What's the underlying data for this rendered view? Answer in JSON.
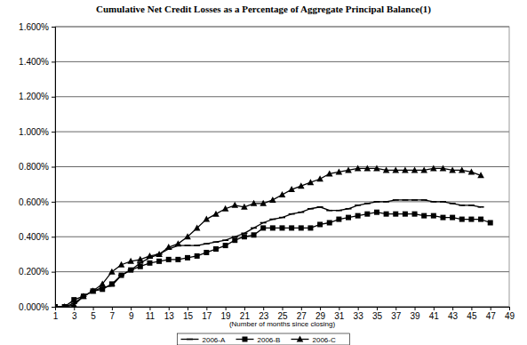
{
  "chart_data": {
    "type": "line",
    "title": "Cumulative Net Credit Losses as a Percentage of Aggregate Principal Balance(1)",
    "x_label": "(Number of months since closing)",
    "x": [
      1,
      2,
      3,
      4,
      5,
      6,
      7,
      8,
      9,
      10,
      11,
      12,
      13,
      14,
      15,
      16,
      17,
      18,
      19,
      20,
      21,
      22,
      23,
      24,
      25,
      26,
      27,
      28,
      29,
      30,
      31,
      32,
      33,
      34,
      35,
      36,
      37,
      38,
      39,
      40,
      41,
      42,
      43,
      44,
      45,
      46,
      47
    ],
    "xlim": [
      1,
      49
    ],
    "xticks": [
      1,
      3,
      5,
      7,
      9,
      11,
      13,
      15,
      17,
      19,
      21,
      23,
      25,
      27,
      29,
      31,
      33,
      35,
      37,
      39,
      41,
      43,
      45,
      47,
      49
    ],
    "ylim": [
      0,
      1.6
    ],
    "yticks": [
      {
        "value": 0,
        "label": "0.000%"
      },
      {
        "value": 0.2,
        "label": "0.200%"
      },
      {
        "value": 0.4,
        "label": "0.400%"
      },
      {
        "value": 0.6,
        "label": "0.600%"
      },
      {
        "value": 0.8,
        "label": "0.800%"
      },
      {
        "value": 1.0,
        "label": "1.000%"
      },
      {
        "value": 1.2,
        "label": "1.200%"
      },
      {
        "value": 1.4,
        "label": "1.400%"
      },
      {
        "value": 1.6,
        "label": "1.600%"
      }
    ],
    "grid": true,
    "legend": "bottom",
    "series": [
      {
        "name": "2006-A",
        "color": "#000000",
        "marker": "dash",
        "line_style": "solid",
        "values": [
          0,
          0,
          0.02,
          0.06,
          0.09,
          0.11,
          0.12,
          0.18,
          0.21,
          0.25,
          0.28,
          0.3,
          0.33,
          0.35,
          0.35,
          0.35,
          0.36,
          0.37,
          0.38,
          0.4,
          0.42,
          0.45,
          0.48,
          0.5,
          0.51,
          0.53,
          0.54,
          0.56,
          0.57,
          0.55,
          0.55,
          0.56,
          0.58,
          0.59,
          0.6,
          0.6,
          0.61,
          0.61,
          0.61,
          0.61,
          0.6,
          0.6,
          0.59,
          0.58,
          0.58,
          0.57,
          null
        ]
      },
      {
        "name": "2006-B",
        "color": "#000000",
        "marker": "square",
        "line_style": "solid",
        "values": [
          0,
          0,
          0.04,
          0.06,
          0.09,
          0.1,
          0.13,
          0.18,
          0.21,
          0.23,
          0.25,
          0.26,
          0.27,
          0.27,
          0.28,
          0.29,
          0.31,
          0.33,
          0.35,
          0.38,
          0.4,
          0.41,
          0.45,
          0.45,
          0.45,
          0.45,
          0.45,
          0.45,
          0.47,
          0.48,
          0.5,
          0.51,
          0.52,
          0.53,
          0.54,
          0.53,
          0.53,
          0.53,
          0.53,
          0.52,
          0.52,
          0.51,
          0.51,
          0.5,
          0.5,
          0.5,
          0.48
        ]
      },
      {
        "name": "2006-C",
        "color": "#000000",
        "marker": "triangle",
        "line_style": "solid",
        "values": [
          0,
          0,
          0.01,
          0.06,
          0.09,
          0.13,
          0.2,
          0.24,
          0.26,
          0.27,
          0.29,
          0.3,
          0.34,
          0.36,
          0.4,
          0.45,
          0.5,
          0.53,
          0.56,
          0.58,
          0.57,
          0.59,
          0.59,
          0.61,
          0.64,
          0.67,
          0.69,
          0.71,
          0.73,
          0.76,
          0.77,
          0.78,
          0.79,
          0.79,
          0.79,
          0.78,
          0.78,
          0.78,
          0.78,
          0.78,
          0.79,
          0.79,
          0.78,
          0.78,
          0.77,
          0.75,
          null
        ]
      }
    ]
  }
}
